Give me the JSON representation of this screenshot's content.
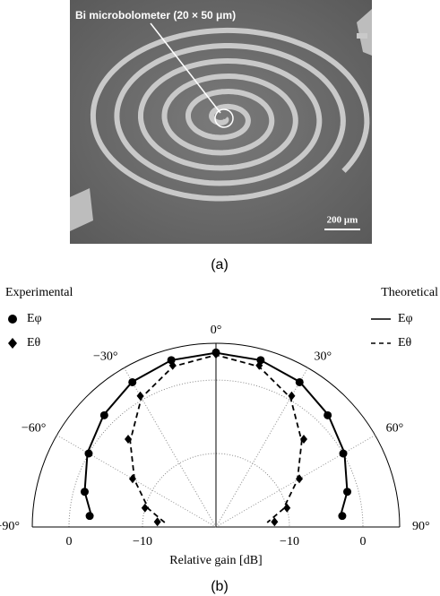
{
  "figure_a": {
    "label": "Bi microbolometer (20 × 50 μm)",
    "scale_bar": "200 μm",
    "caption": "(a)"
  },
  "chart_data": {
    "type": "polar",
    "caption": "(b)",
    "xlabel": "Relative gain [dB]",
    "legend_left_title": "Experimental",
    "legend_right_title": "Theoretical",
    "theta": [
      -85,
      -75,
      -60,
      -45,
      -30,
      -15,
      0,
      15,
      30,
      45,
      60,
      75,
      85
    ],
    "rlim": [
      -20,
      5
    ],
    "rticks": [
      {
        "value": -10,
        "label": "−10"
      },
      0
    ],
    "thetaticks": [
      {
        "value": -90,
        "label": "−90°"
      },
      {
        "value": -60,
        "label": "−60°"
      },
      {
        "value": -30,
        "label": "−30°"
      },
      {
        "value": 0,
        "label": "0°"
      },
      {
        "value": 30,
        "label": "30°"
      },
      {
        "value": 60,
        "label": "60°"
      },
      {
        "value": 90,
        "label": "90°"
      }
    ],
    "grid": true,
    "series": [
      {
        "name": "Eφ",
        "group": "experimental",
        "marker": "circle",
        "color": "#000000",
        "values": [
          -2.75,
          -1.5,
          0,
          1.5,
          2.75,
          3.5,
          3.75,
          3.5,
          2.75,
          1.5,
          0,
          -1.5,
          -2.75
        ]
      },
      {
        "name": "Eθ",
        "group": "experimental",
        "marker": "diamond",
        "color": "#000000",
        "values": [
          -12,
          -10,
          -6.9,
          -3.1,
          0.6,
          2.75,
          3.5,
          2.75,
          0.6,
          -3.1,
          -6.9,
          -10,
          -12
        ]
      },
      {
        "name": "Eφ",
        "group": "theoretical",
        "style": "solid",
        "color": "#000000",
        "values": [
          -3,
          -1.5,
          0.2,
          1.6,
          2.8,
          3.5,
          3.7,
          3.5,
          2.8,
          1.6,
          0.2,
          -1.5,
          -3
        ]
      },
      {
        "name": "Eθ",
        "group": "theoretical",
        "style": "dashed",
        "color": "#000000",
        "values": [
          -13,
          -10.5,
          -7.2,
          -3.5,
          0.3,
          2.6,
          3.4,
          2.6,
          0.3,
          -3.5,
          -7.2,
          -10.5,
          -13
        ]
      }
    ]
  }
}
